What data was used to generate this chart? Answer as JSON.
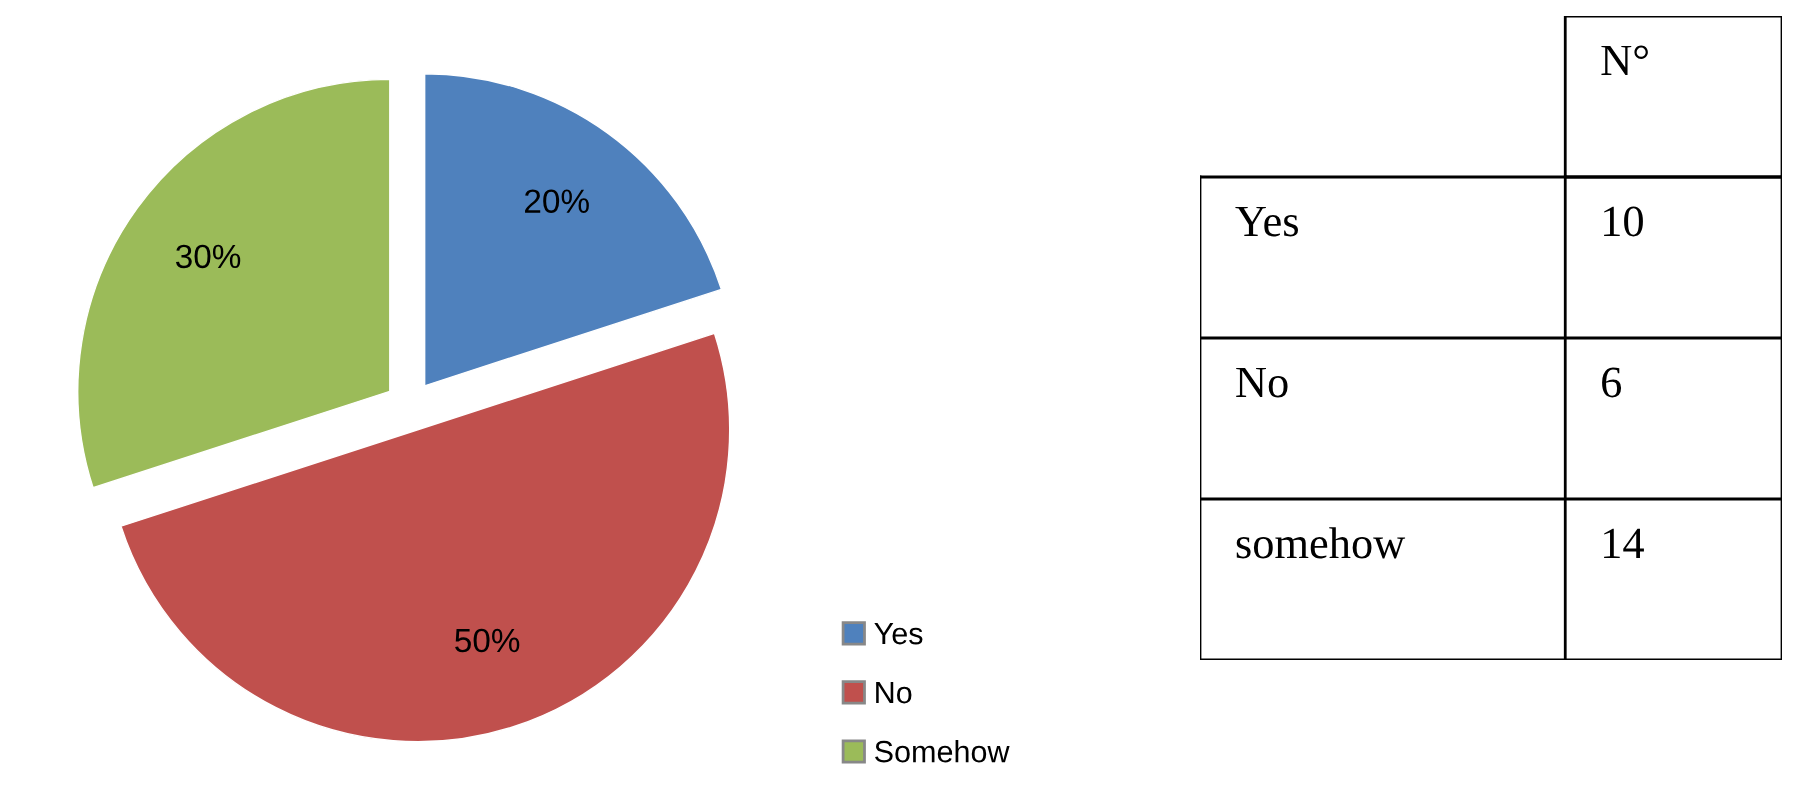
{
  "chart_data": [
    {
      "type": "pie",
      "categories": [
        "Yes",
        "No",
        "Somehow"
      ],
      "values": [
        20,
        50,
        30
      ],
      "colors": [
        "#4f81bd",
        "#c0504d",
        "#9bbb59"
      ],
      "value_labels": [
        "20%",
        "50%",
        "30%"
      ],
      "legend": "right"
    },
    {
      "type": "other",
      "title": "N°",
      "categories": [
        "Yes",
        "No",
        "somehow"
      ],
      "values": [
        10,
        6,
        14
      ],
      "data_labels": true
    }
  ]
}
